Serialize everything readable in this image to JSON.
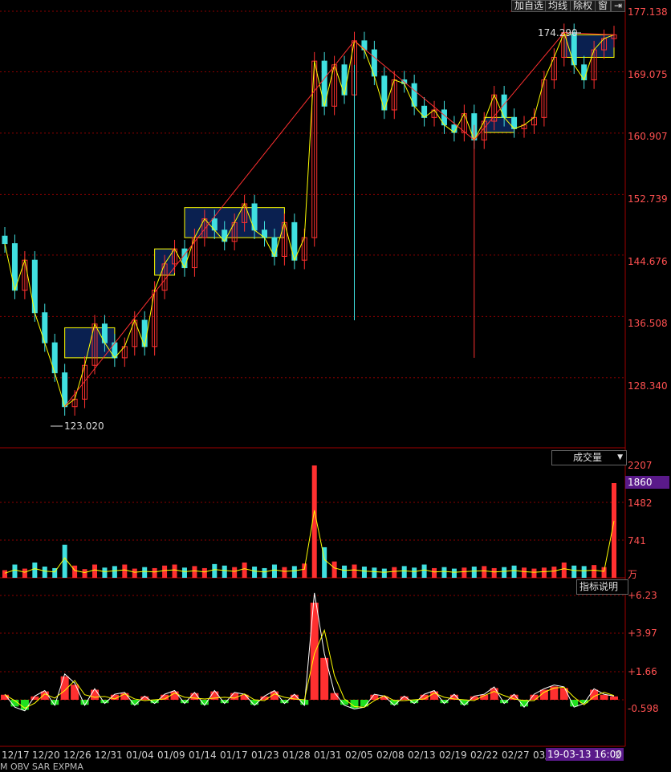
{
  "toolbar": {
    "buttons": [
      "加自选",
      "均线",
      "除权",
      "窗"
    ],
    "exit_icon": "exit-arrow-icon"
  },
  "price_panel": {
    "y_ticks": [
      "177.138",
      "169.075",
      "160.907",
      "152.739",
      "144.676",
      "136.508",
      "128.340"
    ],
    "high_marker": "174.290",
    "low_marker": "123.020"
  },
  "volume_panel": {
    "indicator_label": "成交量",
    "y_ticks": [
      "2207",
      "1482",
      "741"
    ],
    "current_value": "1860",
    "unit": "万"
  },
  "indicator_panel": {
    "explain_button": "指标说明",
    "y_ticks": [
      "+6.23",
      "+3.97",
      "+1.66",
      "-0.598"
    ]
  },
  "x_axis": {
    "labels": [
      "12/17",
      "12/20",
      "12/26",
      "12/31",
      "01/04",
      "01/09",
      "01/14",
      "01/17",
      "01/23",
      "01/28",
      "01/31",
      "02/05",
      "02/08",
      "02/13",
      "02/19",
      "02/22",
      "02/27",
      "03/"
    ],
    "cursor_time": "19-03-13 16:00",
    "trailing": "2"
  },
  "bottom_tabs": "M  OBV  SAR  EXPMA",
  "colors": {
    "up": "#ff3030",
    "down": "#40e0e0",
    "zigzag": "#ffff00",
    "box": "#0a2050",
    "grid": "#8b0000",
    "axis_text": "#ff5050"
  },
  "chart_data": [
    {
      "type": "line",
      "title": "",
      "x_labels": [
        "12/17",
        "12/20",
        "12/26",
        "12/31",
        "01/04",
        "01/09",
        "01/14",
        "01/17",
        "01/23",
        "01/28",
        "01/31",
        "02/05",
        "02/08",
        "02/13",
        "02/19",
        "02/22",
        "02/27",
        "03/"
      ],
      "ylim": [
        121.8,
        177.138
      ],
      "series": [
        {
          "name": "",
          "values": [
            146.2,
            140.0,
            144.0,
            137.0,
            133.0,
            129.0,
            124.5,
            125.5,
            130.0,
            135.5,
            133.0,
            131.0,
            132.5,
            136.0,
            132.5,
            140.0,
            143.5,
            145.5,
            143.0,
            147.0,
            149.5,
            148.0,
            146.5,
            149.0,
            151.5,
            148.0,
            147.0,
            144.5,
            149.0,
            144.0,
            147.0,
            170.5,
            164.5,
            170.0,
            166.0,
            173.2,
            172.0,
            168.5,
            164.0,
            168.0,
            167.5,
            164.5,
            163.0,
            164.0,
            162.0,
            161.0,
            163.5,
            160.0,
            162.5,
            166.0,
            163.0,
            161.5,
            162.0,
            163.0,
            168.0,
            171.0,
            174.29,
            170.0,
            168.0,
            172.0,
            173.5,
            174.0
          ]
        }
      ],
      "annotations": [
        "174.290",
        "123.020"
      ]
    },
    {
      "type": "bar",
      "title": "成交量",
      "ylim": [
        0,
        2207
      ],
      "unit": "万",
      "values": [
        150,
        260,
        180,
        300,
        220,
        190,
        650,
        240,
        170,
        260,
        200,
        230,
        260,
        180,
        210,
        190,
        240,
        260,
        200,
        230,
        190,
        270,
        240,
        210,
        300,
        220,
        190,
        260,
        210,
        230,
        280,
        2207,
        600,
        320,
        240,
        260,
        220,
        200,
        180,
        210,
        230,
        200,
        260,
        190,
        210,
        180,
        200,
        220,
        230,
        190,
        210,
        240,
        200,
        180,
        200,
        220,
        300,
        240,
        230,
        250,
        210,
        1860
      ]
    },
    {
      "type": "bar",
      "title": "",
      "ylim": [
        -0.9,
        6.23
      ],
      "values": [
        0.3,
        -0.4,
        -0.6,
        0.2,
        0.5,
        -0.3,
        1.4,
        0.9,
        -0.3,
        0.6,
        -0.2,
        0.3,
        0.4,
        -0.3,
        0.2,
        -0.2,
        0.3,
        0.5,
        -0.2,
        0.4,
        -0.3,
        0.5,
        -0.2,
        0.4,
        0.3,
        -0.3,
        0.2,
        0.5,
        -0.2,
        0.3,
        -0.3,
        5.8,
        2.5,
        0.4,
        -0.3,
        -0.5,
        -0.4,
        0.3,
        0.2,
        -0.3,
        0.2,
        -0.2,
        0.3,
        0.5,
        -0.2,
        0.3,
        -0.3,
        0.2,
        0.3,
        0.7,
        -0.2,
        0.3,
        -0.4,
        0.3,
        0.6,
        0.8,
        0.7,
        -0.4,
        -0.2,
        0.6,
        0.3,
        0.2
      ]
    }
  ]
}
